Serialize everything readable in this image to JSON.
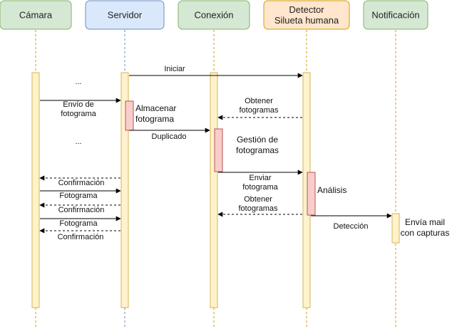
{
  "colors": {
    "green_fill": "#d5e8d4",
    "green_stroke": "#82b366",
    "blue_fill": "#dae8fc",
    "blue_stroke": "#6c8ebf",
    "orange_fill": "#ffe6cc",
    "orange_stroke": "#d79b00",
    "activation_fill": "#fff2cc",
    "activation_stroke": "#d6b656",
    "process_fill": "#f8cecc",
    "process_stroke": "#b85450",
    "lifeline": "#d79b00"
  },
  "actors": [
    {
      "id": "camara",
      "lines": [
        "Cámara"
      ],
      "style": "green"
    },
    {
      "id": "servidor",
      "lines": [
        "Servidor"
      ],
      "style": "blue"
    },
    {
      "id": "conexion",
      "lines": [
        "Conexión"
      ],
      "style": "green"
    },
    {
      "id": "detector",
      "lines": [
        "Detector",
        "Silueta humana"
      ],
      "style": "orange"
    },
    {
      "id": "notificacion",
      "lines": [
        "Notificación"
      ],
      "style": "green"
    }
  ],
  "messages": [
    {
      "id": "iniciar",
      "lines": [
        "Iniciar"
      ],
      "from": "servidor",
      "to": "detector",
      "dashed": false
    },
    {
      "id": "envio-fotograma",
      "lines": [
        "Envío de",
        "fotograma"
      ],
      "from": "camara",
      "to": "servidor",
      "dashed": false
    },
    {
      "id": "obtener-fotogramas-1",
      "lines": [
        "Obtener",
        "fotogramas"
      ],
      "from": "detector",
      "to": "conexion",
      "dashed": true
    },
    {
      "id": "duplicado",
      "lines": [
        "Duplicado"
      ],
      "from": "servidor",
      "to": "conexion",
      "dashed": false
    },
    {
      "id": "enviar-fotograma",
      "lines": [
        "Enviar",
        "fotograma"
      ],
      "from": "conexion",
      "to": "detector",
      "dashed": false
    },
    {
      "id": "confirmacion-1",
      "lines": [
        "Confirmación"
      ],
      "from": "servidor",
      "to": "camara",
      "dashed": true
    },
    {
      "id": "fotograma-1",
      "lines": [
        "Fotograma"
      ],
      "from": "camara",
      "to": "servidor",
      "dashed": false
    },
    {
      "id": "confirmacion-2",
      "lines": [
        "Confirmación"
      ],
      "from": "servidor",
      "to": "camara",
      "dashed": true
    },
    {
      "id": "obtener-fotogramas-2",
      "lines": [
        "Obtener",
        "fotogramas"
      ],
      "from": "detector",
      "to": "conexion",
      "dashed": true
    },
    {
      "id": "deteccion",
      "lines": [
        "Detección"
      ],
      "from": "detector",
      "to": "notificacion",
      "dashed": false
    },
    {
      "id": "fotograma-2",
      "lines": [
        "Fotograma"
      ],
      "from": "camara",
      "to": "servidor",
      "dashed": false
    },
    {
      "id": "confirmacion-3",
      "lines": [
        "Confirmación"
      ],
      "from": "servidor",
      "to": "camara",
      "dashed": true
    }
  ],
  "processes": [
    {
      "id": "almacenar",
      "lines": [
        "Almacenar",
        "fotograma"
      ],
      "actor": "servidor"
    },
    {
      "id": "gestion",
      "lines": [
        "Gestión de",
        "fotogramas"
      ],
      "actor": "conexion"
    },
    {
      "id": "analisis",
      "lines": [
        "Análisis"
      ],
      "actor": "detector"
    },
    {
      "id": "envia-mail",
      "lines": [
        "Envía mail",
        "con capturas"
      ],
      "actor": "notificacion"
    }
  ],
  "ellipses": [
    {
      "id": "ellipsis-1",
      "text": "..."
    },
    {
      "id": "ellipsis-2",
      "text": "..."
    }
  ]
}
